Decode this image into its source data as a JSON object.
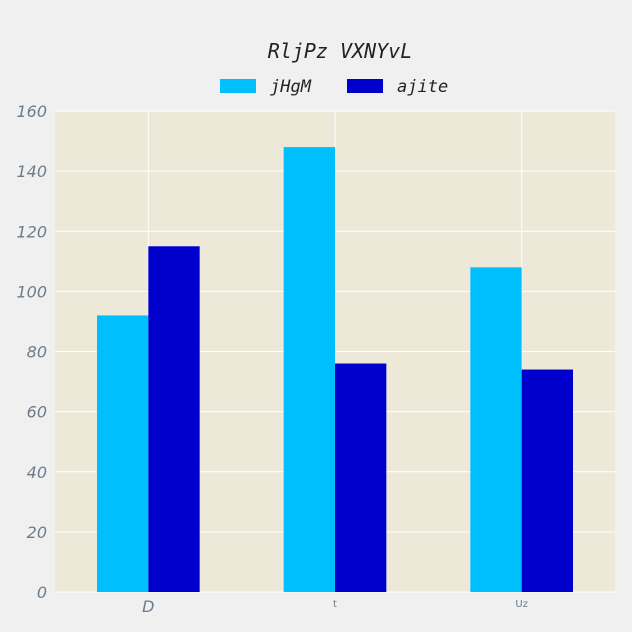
{
  "chart_data": {
    "type": "bar",
    "title": "RljPz VXNYvL",
    "xlabel": "",
    "ylabel": "",
    "categories": [
      "D",
      "t",
      "Uz"
    ],
    "series": [
      {
        "name": "jHgM",
        "values": [
          92,
          148,
          108
        ],
        "color": "#00bfff"
      },
      {
        "name": "ajite",
        "values": [
          115,
          76,
          74
        ],
        "color": "#0000cd"
      }
    ],
    "ylim": [
      0,
      160
    ],
    "yticks": [
      0,
      20,
      40,
      60,
      80,
      100,
      120,
      140,
      160
    ],
    "grid": true,
    "legend": "top-center",
    "plot_background": "#ede8d8",
    "page_background": "#f0f0f0"
  }
}
